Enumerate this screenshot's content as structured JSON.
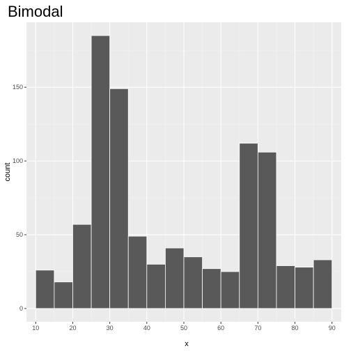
{
  "chart_data": {
    "type": "bar",
    "title": "Bimodal",
    "xlabel": "x",
    "ylabel": "count",
    "bin_width": 5,
    "bins": [
      {
        "start": 10,
        "end": 15,
        "count": 26
      },
      {
        "start": 15,
        "end": 20,
        "count": 18
      },
      {
        "start": 20,
        "end": 25,
        "count": 57
      },
      {
        "start": 25,
        "end": 30,
        "count": 185
      },
      {
        "start": 30,
        "end": 35,
        "count": 149
      },
      {
        "start": 35,
        "end": 40,
        "count": 49
      },
      {
        "start": 40,
        "end": 45,
        "count": 30
      },
      {
        "start": 45,
        "end": 50,
        "count": 41
      },
      {
        "start": 50,
        "end": 55,
        "count": 35
      },
      {
        "start": 55,
        "end": 60,
        "count": 27
      },
      {
        "start": 60,
        "end": 65,
        "count": 25
      },
      {
        "start": 65,
        "end": 70,
        "count": 112
      },
      {
        "start": 70,
        "end": 75,
        "count": 106
      },
      {
        "start": 75,
        "end": 80,
        "count": 29
      },
      {
        "start": 80,
        "end": 85,
        "count": 28
      },
      {
        "start": 85,
        "end": 90,
        "count": 33
      }
    ],
    "xlim": [
      7.5,
      92.5
    ],
    "ylim": [
      -9,
      194
    ],
    "x_ticks": [
      10,
      20,
      30,
      40,
      50,
      60,
      70,
      80,
      90
    ],
    "x_tick_labels": [
      "10",
      "20",
      "30",
      "40",
      "50",
      "60",
      "70",
      "80",
      "90"
    ],
    "y_ticks": [
      0,
      50,
      100,
      150
    ],
    "y_tick_labels": [
      "0",
      "50",
      "100",
      "150"
    ],
    "grid": true,
    "colors": {
      "bar_fill": "#595959",
      "bar_edge": "#ffffff",
      "panel_bg": "#ebebeb",
      "grid_major": "#ffffff",
      "grid_minor": "#f2f2f2",
      "tick_mark": "#333333"
    }
  }
}
